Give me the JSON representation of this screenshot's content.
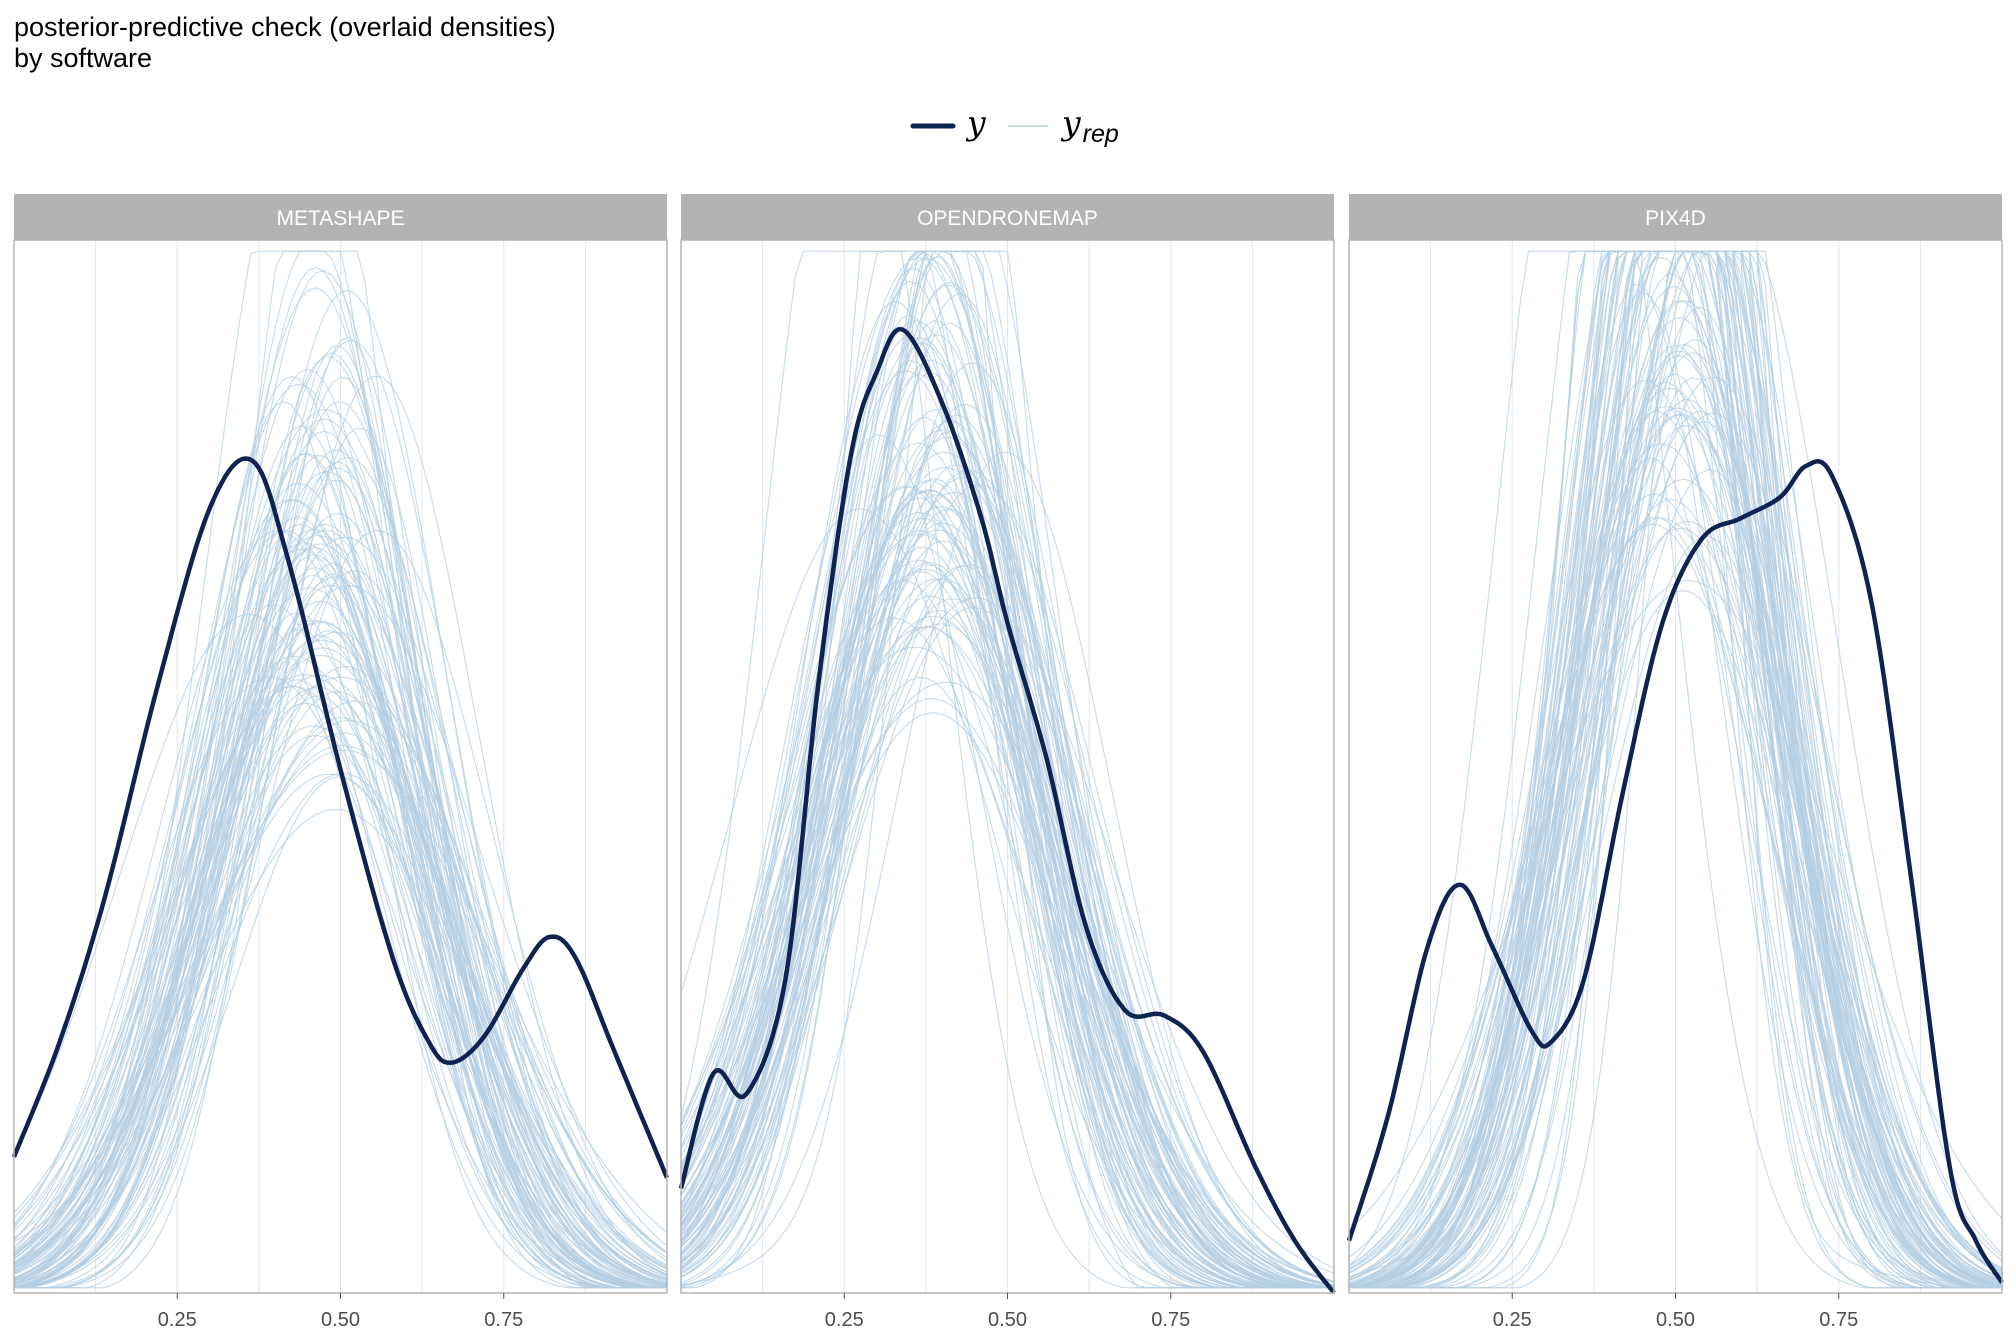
{
  "title_lines": [
    "posterior-predictive check (overlaid densities)",
    "by software"
  ],
  "legend": {
    "observed_label": "y",
    "replicated_label": "y",
    "replicated_subscript": "rep"
  },
  "colors": {
    "observed": "#0f2350",
    "replicated": "#b3cde3",
    "strip": "#b3b3b3",
    "grid": "#e3e6ea",
    "border": "#b3b3b3"
  },
  "chart_data": {
    "type": "line",
    "title": "posterior-predictive check (overlaid densities)",
    "subtitle": "by software",
    "xlabel": "",
    "ylabel": "",
    "xlim": [
      0.0,
      1.0
    ],
    "ylim": [
      0.0,
      1.0
    ],
    "x_ticks": [
      0.25,
      0.5,
      0.75
    ],
    "x_tick_labels": [
      "0.25",
      "0.50",
      "0.75"
    ],
    "y_axis_shown": false,
    "grid": "vertical major and minor",
    "legend_position": "top-center",
    "series_names": [
      "y",
      "y_rep"
    ],
    "facets": [
      {
        "label": "METASHAPE",
        "observed": [
          [
            0.0,
            0.13
          ],
          [
            0.07,
            0.24
          ],
          [
            0.14,
            0.38
          ],
          [
            0.22,
            0.58
          ],
          [
            0.3,
            0.75
          ],
          [
            0.365,
            0.795
          ],
          [
            0.42,
            0.7
          ],
          [
            0.5,
            0.5
          ],
          [
            0.58,
            0.32
          ],
          [
            0.635,
            0.24
          ],
          [
            0.67,
            0.22
          ],
          [
            0.72,
            0.245
          ],
          [
            0.78,
            0.31
          ],
          [
            0.82,
            0.34
          ],
          [
            0.86,
            0.32
          ],
          [
            0.92,
            0.23
          ],
          [
            1.0,
            0.11
          ]
        ],
        "rep_center": 0.47,
        "rep_mean_peak": 0.6,
        "rep_count": 100
      },
      {
        "label": "OPENDRONEMAP",
        "observed": [
          [
            0.0,
            0.1
          ],
          [
            0.05,
            0.21
          ],
          [
            0.1,
            0.19
          ],
          [
            0.16,
            0.3
          ],
          [
            0.21,
            0.58
          ],
          [
            0.26,
            0.8
          ],
          [
            0.3,
            0.88
          ],
          [
            0.34,
            0.92
          ],
          [
            0.4,
            0.85
          ],
          [
            0.46,
            0.74
          ],
          [
            0.5,
            0.64
          ],
          [
            0.56,
            0.51
          ],
          [
            0.62,
            0.35
          ],
          [
            0.68,
            0.27
          ],
          [
            0.74,
            0.265
          ],
          [
            0.8,
            0.23
          ],
          [
            0.88,
            0.12
          ],
          [
            0.94,
            0.05
          ],
          [
            1.0,
            0.0
          ]
        ],
        "rep_center": 0.38,
        "rep_mean_peak": 0.68,
        "rep_count": 100
      },
      {
        "label": "PIX4D",
        "observed": [
          [
            0.0,
            0.05
          ],
          [
            0.06,
            0.17
          ],
          [
            0.12,
            0.33
          ],
          [
            0.17,
            0.39
          ],
          [
            0.22,
            0.33
          ],
          [
            0.28,
            0.25
          ],
          [
            0.31,
            0.24
          ],
          [
            0.36,
            0.3
          ],
          [
            0.42,
            0.48
          ],
          [
            0.48,
            0.64
          ],
          [
            0.54,
            0.72
          ],
          [
            0.6,
            0.74
          ],
          [
            0.66,
            0.76
          ],
          [
            0.7,
            0.79
          ],
          [
            0.74,
            0.78
          ],
          [
            0.8,
            0.66
          ],
          [
            0.86,
            0.4
          ],
          [
            0.92,
            0.12
          ],
          [
            0.96,
            0.05
          ],
          [
            1.0,
            0.01
          ]
        ],
        "rep_center": 0.5,
        "rep_mean_peak": 0.74,
        "rep_count": 100
      }
    ]
  }
}
